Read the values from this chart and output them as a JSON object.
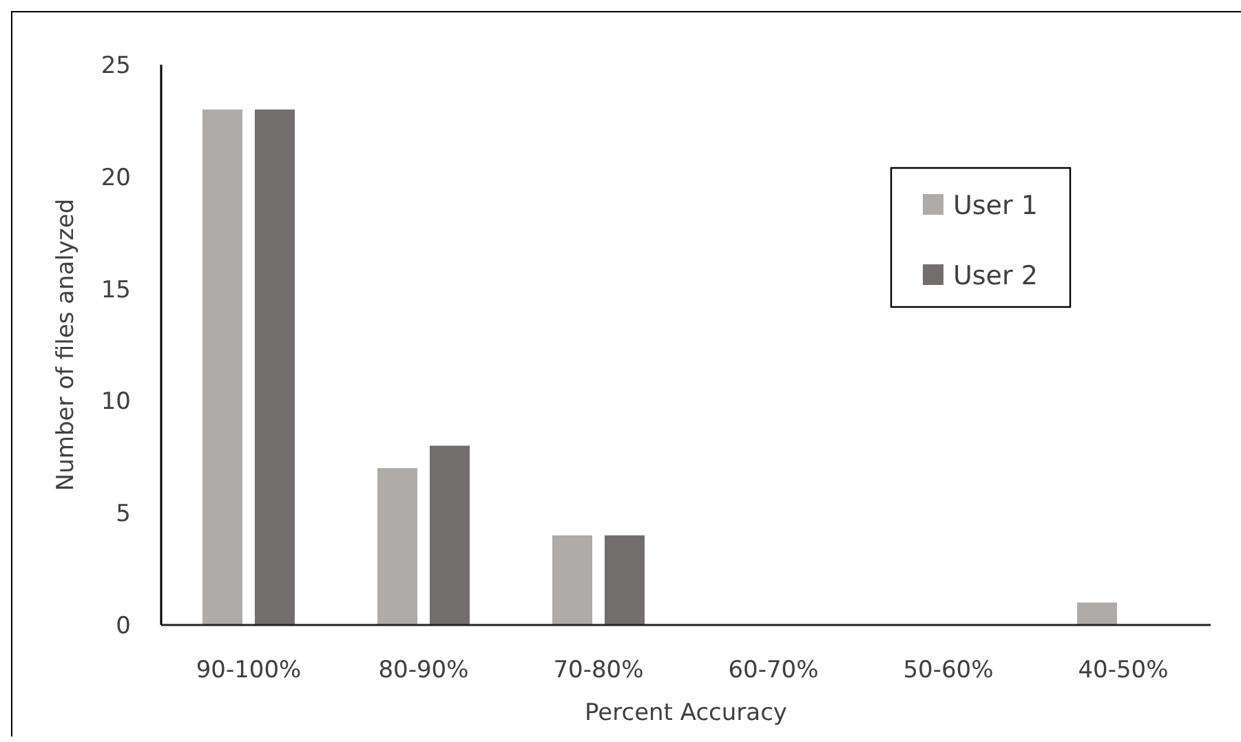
{
  "chart_data": {
    "type": "bar",
    "xlabel": "Percent Accuracy",
    "ylabel": "Number of files analyzed",
    "categories": [
      "90-100%",
      "80-90%",
      "70-80%",
      "60-70%",
      "50-60%",
      "40-50%"
    ],
    "series": [
      {
        "name": "User 1",
        "color": "#aeaba8",
        "values": [
          23,
          7,
          4,
          0,
          0,
          1
        ]
      },
      {
        "name": "User 2",
        "color": "#736e6e",
        "values": [
          23,
          8,
          4,
          0,
          0,
          0
        ]
      }
    ],
    "ylim": [
      0,
      25
    ],
    "yticks": [
      0,
      5,
      10,
      15,
      20,
      25
    ],
    "grid": false,
    "legend": "top right"
  }
}
